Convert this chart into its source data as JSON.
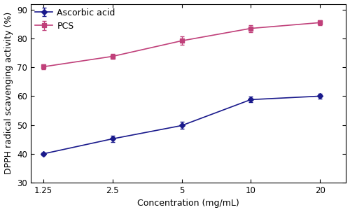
{
  "x": [
    1.25,
    2.5,
    5,
    10,
    20
  ],
  "ascorbic_acid_y": [
    40.0,
    45.2,
    49.8,
    58.8,
    60.0
  ],
  "ascorbic_acid_err": [
    0.5,
    1.0,
    1.2,
    1.0,
    0.8
  ],
  "pcs_y": [
    70.2,
    73.8,
    79.2,
    83.5,
    85.5
  ],
  "pcs_err": [
    0.8,
    0.9,
    1.5,
    1.2,
    0.8
  ],
  "ascorbic_acid_color": "#1a1a8c",
  "pcs_color": "#c0407a",
  "xlabel": "Concentration (mg/mL)",
  "ylabel": "DPPH radical scavenging activity (%)",
  "ylim": [
    30,
    92
  ],
  "yticks": [
    30,
    40,
    50,
    60,
    70,
    80,
    90
  ],
  "xticks": [
    1.25,
    2.5,
    5,
    10,
    20
  ],
  "xticklabels": [
    "1.25",
    "2.5",
    "5",
    "10",
    "20"
  ],
  "xlim_log": [
    1.1,
    26
  ],
  "legend_labels": [
    "Ascorbic acid",
    "PCS"
  ],
  "axis_fontsize": 9,
  "tick_fontsize": 8.5,
  "legend_fontsize": 9
}
